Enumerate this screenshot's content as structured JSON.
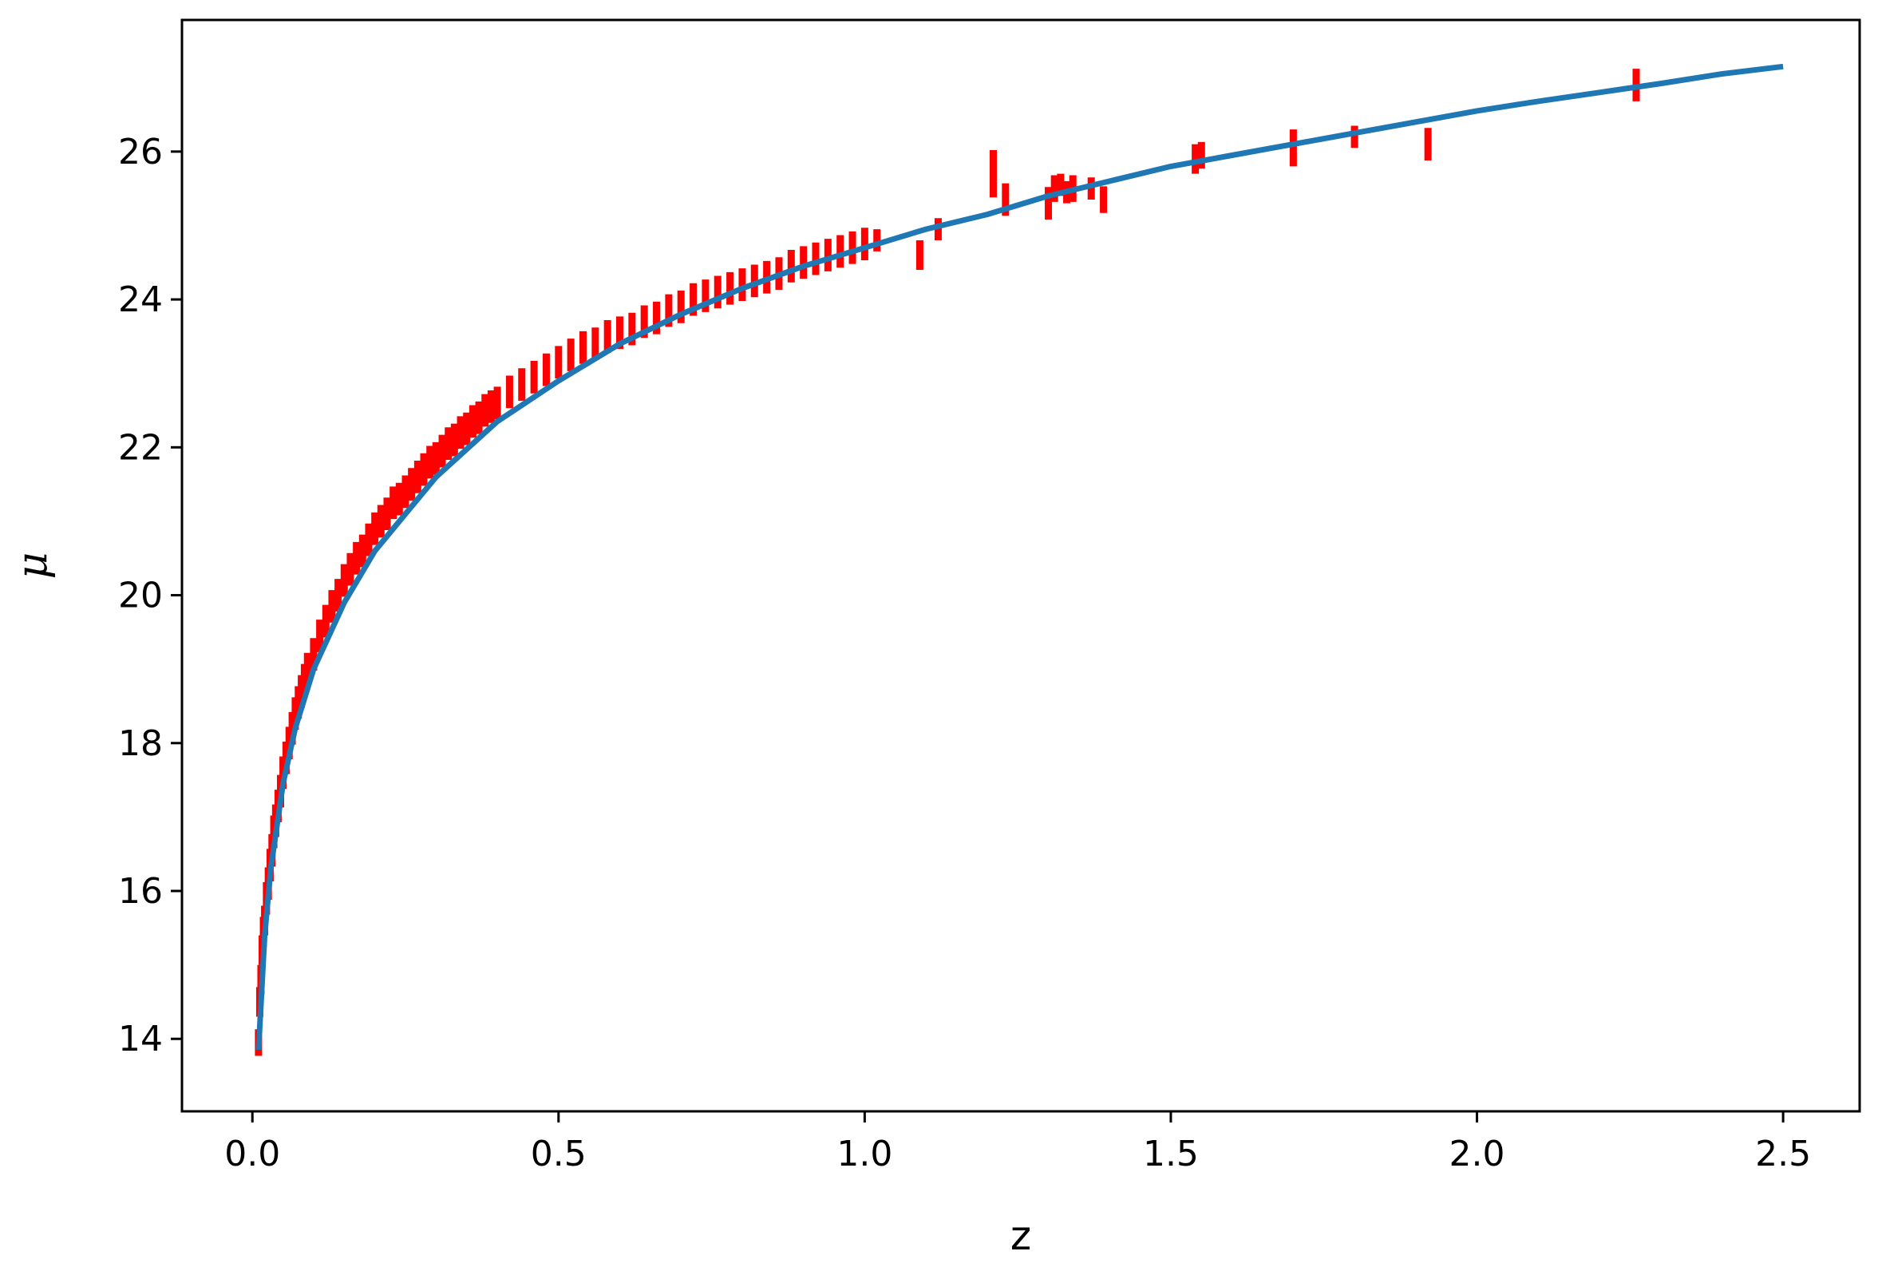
{
  "chart_data": {
    "type": "scatter",
    "title": "",
    "xlabel": "z",
    "ylabel": "μ",
    "xlim": [
      -0.115,
      2.625
    ],
    "ylim": [
      13.02,
      27.78
    ],
    "xticks": [
      0.0,
      0.5,
      1.0,
      1.5,
      2.0,
      2.5
    ],
    "xtick_labels": [
      "0.0",
      "0.5",
      "1.0",
      "1.5",
      "2.0",
      "2.5"
    ],
    "yticks": [
      14,
      16,
      18,
      20,
      22,
      24,
      26
    ],
    "ytick_labels": [
      "14",
      "16",
      "18",
      "20",
      "22",
      "24",
      "26"
    ],
    "grid": false,
    "legend": "none",
    "colors": {
      "data": "#ff0000",
      "model": "#1f77b4",
      "axes": "#000000"
    },
    "series": [
      {
        "kind": "errorbar",
        "x": [
          0.01,
          0.012,
          0.014,
          0.016,
          0.018,
          0.02,
          0.023,
          0.026,
          0.029,
          0.032,
          0.035,
          0.038,
          0.042,
          0.046,
          0.05,
          0.055,
          0.06,
          0.065,
          0.07,
          0.075,
          0.08,
          0.085,
          0.09,
          0.1,
          0.11,
          0.12,
          0.13,
          0.14,
          0.15,
          0.16,
          0.17,
          0.18,
          0.19,
          0.2,
          0.21,
          0.22,
          0.23,
          0.24,
          0.25,
          0.26,
          0.27,
          0.28,
          0.29,
          0.3,
          0.31,
          0.32,
          0.33,
          0.34,
          0.35,
          0.36,
          0.37,
          0.38,
          0.39,
          0.4,
          0.42,
          0.44,
          0.46,
          0.48,
          0.5,
          0.52,
          0.54,
          0.56,
          0.58,
          0.6,
          0.62,
          0.64,
          0.66,
          0.68,
          0.7,
          0.72,
          0.74,
          0.76,
          0.78,
          0.8,
          0.82,
          0.84,
          0.86,
          0.88,
          0.9,
          0.92,
          0.94,
          0.96,
          0.98,
          1.0,
          1.02,
          1.09,
          1.12,
          1.21,
          1.23,
          1.3,
          1.31,
          1.32,
          1.33,
          1.34,
          1.37,
          1.39,
          1.54,
          1.55,
          1.7,
          1.8,
          1.92,
          2.26
        ],
        "y": [
          13.95,
          14.5,
          14.8,
          15.2,
          15.45,
          15.6,
          15.9,
          16.1,
          16.35,
          16.55,
          16.8,
          16.95,
          17.15,
          17.35,
          17.6,
          17.8,
          18.0,
          18.2,
          18.4,
          18.55,
          18.7,
          18.85,
          19.0,
          19.2,
          19.45,
          19.65,
          19.85,
          20.0,
          20.2,
          20.35,
          20.5,
          20.6,
          20.75,
          20.9,
          21.0,
          21.1,
          21.25,
          21.3,
          21.4,
          21.5,
          21.6,
          21.7,
          21.8,
          21.85,
          21.95,
          22.05,
          22.1,
          22.2,
          22.25,
          22.35,
          22.4,
          22.5,
          22.55,
          22.6,
          22.75,
          22.85,
          22.95,
          23.05,
          23.15,
          23.25,
          23.35,
          23.4,
          23.5,
          23.55,
          23.6,
          23.7,
          23.75,
          23.85,
          23.9,
          24.0,
          24.05,
          24.1,
          24.15,
          24.2,
          24.25,
          24.3,
          24.35,
          24.45,
          24.5,
          24.55,
          24.6,
          24.65,
          24.7,
          24.75,
          24.8,
          24.6,
          24.95,
          25.7,
          25.35,
          25.3,
          25.5,
          25.55,
          25.45,
          25.5,
          25.5,
          25.35,
          25.9,
          25.95,
          26.05,
          26.2,
          26.1,
          26.9
        ],
        "yerr": [
          0.18,
          0.2,
          0.2,
          0.2,
          0.2,
          0.2,
          0.22,
          0.22,
          0.22,
          0.22,
          0.22,
          0.22,
          0.22,
          0.22,
          0.22,
          0.22,
          0.22,
          0.22,
          0.22,
          0.22,
          0.22,
          0.22,
          0.22,
          0.22,
          0.22,
          0.22,
          0.22,
          0.22,
          0.22,
          0.22,
          0.22,
          0.22,
          0.22,
          0.22,
          0.22,
          0.22,
          0.22,
          0.22,
          0.22,
          0.22,
          0.22,
          0.22,
          0.22,
          0.22,
          0.22,
          0.22,
          0.22,
          0.22,
          0.22,
          0.22,
          0.22,
          0.22,
          0.22,
          0.22,
          0.22,
          0.22,
          0.22,
          0.22,
          0.22,
          0.22,
          0.22,
          0.22,
          0.22,
          0.22,
          0.22,
          0.22,
          0.22,
          0.22,
          0.22,
          0.22,
          0.22,
          0.22,
          0.22,
          0.22,
          0.22,
          0.22,
          0.22,
          0.22,
          0.22,
          0.22,
          0.22,
          0.22,
          0.22,
          0.22,
          0.15,
          0.2,
          0.15,
          0.32,
          0.22,
          0.22,
          0.18,
          0.15,
          0.15,
          0.18,
          0.15,
          0.18,
          0.2,
          0.18,
          0.25,
          0.15,
          0.22,
          0.22
        ]
      },
      {
        "kind": "line",
        "x": [
          0.01,
          0.02,
          0.03,
          0.05,
          0.07,
          0.1,
          0.15,
          0.2,
          0.25,
          0.3,
          0.4,
          0.5,
          0.6,
          0.7,
          0.8,
          0.9,
          1.0,
          1.1,
          1.2,
          1.3,
          1.4,
          1.5,
          1.6,
          1.7,
          1.8,
          1.9,
          2.0,
          2.1,
          2.2,
          2.3,
          2.4,
          2.5
        ],
        "y": [
          13.85,
          15.4,
          16.3,
          17.45,
          18.2,
          19.0,
          19.9,
          20.6,
          21.1,
          21.6,
          22.35,
          22.9,
          23.4,
          23.8,
          24.15,
          24.45,
          24.7,
          24.95,
          25.15,
          25.4,
          25.6,
          25.8,
          25.95,
          26.1,
          26.25,
          26.4,
          26.55,
          26.68,
          26.8,
          26.92,
          27.05,
          27.15
        ]
      }
    ]
  }
}
